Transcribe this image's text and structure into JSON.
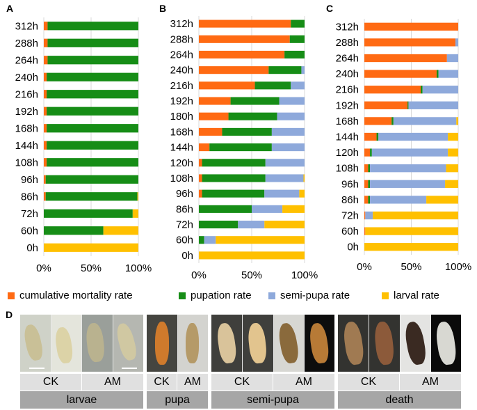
{
  "legend": {
    "items": [
      {
        "label": "cumulative mortality rate",
        "color": "#ff6a13"
      },
      {
        "label": "pupation rate",
        "color": "#168d16"
      },
      {
        "label": "semi-pupa rate",
        "color": "#8ea9db"
      },
      {
        "label": "larval rate",
        "color": "#ffc000"
      }
    ]
  },
  "chart_data": [
    {
      "type": "bar",
      "orientation": "horizontal",
      "stacked": true,
      "panel": "A",
      "categories": [
        "312h",
        "288h",
        "264h",
        "240h",
        "216h",
        "192h",
        "168h",
        "144h",
        "108h",
        "96h",
        "86h",
        "72h",
        "60h",
        "0h"
      ],
      "series": [
        {
          "name": "cumulative mortality rate",
          "values": [
            4,
            4,
            4,
            3,
            3,
            3,
            3,
            3,
            3,
            2,
            2,
            0,
            0,
            0
          ]
        },
        {
          "name": "pupation rate",
          "values": [
            96,
            96,
            96,
            97,
            97,
            97,
            97,
            97,
            97,
            98,
            97,
            94,
            63,
            0
          ]
        },
        {
          "name": "semi-pupa rate",
          "values": [
            0,
            0,
            0,
            0,
            0,
            0,
            0,
            0,
            0,
            0,
            0,
            0,
            0,
            0
          ]
        },
        {
          "name": "larval rate",
          "values": [
            0,
            0,
            0,
            0,
            0,
            0,
            0,
            0,
            0,
            0,
            1,
            6,
            37,
            100
          ]
        }
      ],
      "xticks": [
        "0%",
        "50%",
        "100%"
      ],
      "xlim": [
        0,
        100
      ],
      "grid": true
    },
    {
      "type": "bar",
      "orientation": "horizontal",
      "stacked": true,
      "panel": "B",
      "categories": [
        "312h",
        "288h",
        "264h",
        "240h",
        "216h",
        "192h",
        "180h",
        "168h",
        "144h",
        "120h",
        "108h",
        "96h",
        "86h",
        "72h",
        "60h",
        "0h"
      ],
      "series": [
        {
          "name": "cumulative mortality rate",
          "values": [
            87,
            86,
            81,
            66,
            53,
            30,
            28,
            22,
            10,
            3,
            3,
            3,
            0,
            0,
            0,
            0
          ]
        },
        {
          "name": "pupation rate",
          "values": [
            13,
            14,
            19,
            31,
            34,
            46,
            46,
            47,
            59,
            60,
            60,
            59,
            50,
            37,
            5,
            0
          ]
        },
        {
          "name": "semi-pupa rate",
          "values": [
            0,
            0,
            0,
            3,
            13,
            24,
            26,
            31,
            31,
            37,
            36,
            33,
            29,
            25,
            11,
            0
          ]
        },
        {
          "name": "larval rate",
          "values": [
            0,
            0,
            0,
            0,
            0,
            0,
            0,
            0,
            0,
            0,
            1,
            5,
            21,
            38,
            84,
            100
          ]
        }
      ],
      "xticks": [
        "0%",
        "50%",
        "100%"
      ],
      "xlim": [
        0,
        100
      ],
      "grid": true
    },
    {
      "type": "bar",
      "orientation": "horizontal",
      "stacked": true,
      "panel": "C",
      "categories": [
        "312h",
        "288h",
        "264h",
        "240h",
        "216h",
        "192h",
        "168h",
        "144h",
        "120h",
        "108h",
        "96h",
        "86h",
        "72h",
        "60h",
        "0h"
      ],
      "series": [
        {
          "name": "cumulative mortality rate",
          "values": [
            100,
            97,
            88,
            77,
            60,
            46,
            29,
            13,
            6,
            4,
            4,
            4,
            1,
            1,
            0
          ]
        },
        {
          "name": "pupation rate",
          "values": [
            0,
            0,
            0,
            2,
            2,
            1,
            2,
            2,
            2,
            2,
            2,
            2,
            0,
            0,
            0
          ]
        },
        {
          "name": "semi-pupa rate",
          "values": [
            0,
            3,
            12,
            21,
            38,
            53,
            67,
            74,
            81,
            81,
            80,
            60,
            8,
            0,
            0
          ]
        },
        {
          "name": "larval rate",
          "values": [
            0,
            0,
            0,
            0,
            0,
            0,
            2,
            11,
            11,
            13,
            14,
            34,
            91,
            99,
            100
          ]
        }
      ],
      "xticks": [
        "0%",
        "50%",
        "100%"
      ],
      "xlim": [
        0,
        100
      ],
      "grid": true
    }
  ],
  "panel_letters": {
    "a": "A",
    "b": "B",
    "c": "C",
    "d": "D"
  },
  "panel_d": {
    "groups": [
      "CK",
      "AM",
      "CK",
      "AM",
      "CK",
      "AM",
      "CK",
      "AM"
    ],
    "stages": [
      "larvae",
      "pupa",
      "semi-pupa",
      "death"
    ]
  }
}
